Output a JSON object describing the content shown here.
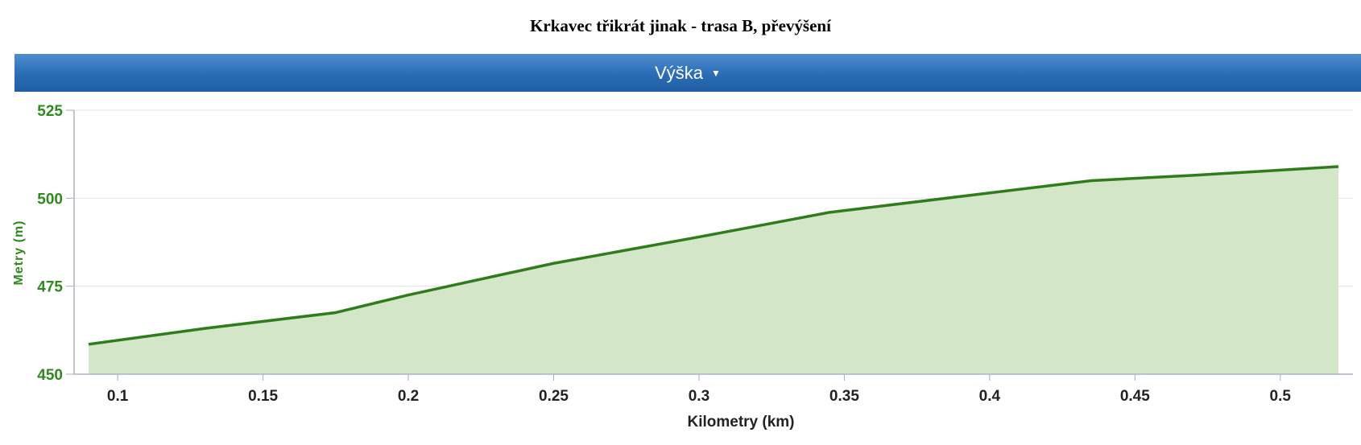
{
  "page": {
    "title": "Krkavec třikrát jinak - trasa B, převýšení"
  },
  "header": {
    "dropdown_label": "Výška",
    "caret_icon": "caret-down-icon"
  },
  "colors": {
    "line": "#2e7d1a",
    "fill": "#d3e6c8",
    "y_axis_text": "#2f8a1e",
    "header": "#2a6db5"
  },
  "chart_data": {
    "type": "area",
    "title": "",
    "xlabel": "Kilometry (km)",
    "ylabel": "Metry (m)",
    "xlim": [
      0.085,
      0.525
    ],
    "ylim": [
      450,
      525
    ],
    "x_ticks": [
      0.1,
      0.15,
      0.2,
      0.25,
      0.3,
      0.35,
      0.4,
      0.45,
      0.5
    ],
    "x_tick_labels": [
      "0.1",
      "0.15",
      "0.2",
      "0.25",
      "0.3",
      "0.35",
      "0.4",
      "0.45",
      "0.5"
    ],
    "y_ticks": [
      450,
      475,
      500,
      525
    ],
    "y_tick_labels": [
      "450",
      "475",
      "500",
      "525"
    ],
    "grid": true,
    "series": [
      {
        "x": [
          0.09,
          0.13,
          0.175,
          0.2,
          0.25,
          0.3,
          0.345,
          0.4,
          0.435,
          0.47,
          0.52
        ],
        "y": [
          458.5,
          463,
          467.5,
          472.5,
          481.5,
          489,
          496,
          501.5,
          505,
          506.5,
          509
        ]
      }
    ]
  }
}
